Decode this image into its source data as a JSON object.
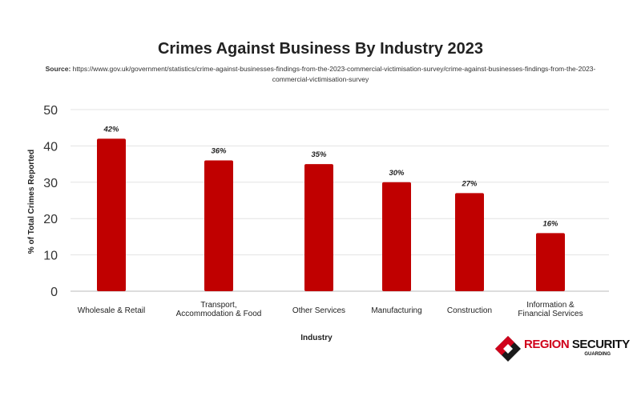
{
  "chart_data": {
    "type": "bar",
    "title": "Crimes Against Business By Industry 2023",
    "source_label": "Source:",
    "source_text": "https://www.gov.uk/government/statistics/crime-against-businesses-findings-from-the-2023-commercial-victimisation-survey/crime-against-businesses-findings-from-the-2023-commercial-victimisation-survey",
    "xlabel": "Industry",
    "ylabel": "% of Total Crimes Reported",
    "ylim": [
      0,
      50
    ],
    "yticks": [
      0,
      10,
      20,
      30,
      40,
      50
    ],
    "grid": true,
    "categories": [
      [
        "Wholesale & Retail"
      ],
      [
        "Transport,",
        "Accommodation & Food"
      ],
      [
        "Other Services"
      ],
      [
        "Manufacturing"
      ],
      [
        "Construction"
      ],
      [
        "Information &",
        "Financial Services"
      ]
    ],
    "values": [
      42,
      36,
      35,
      30,
      27,
      16
    ],
    "data_labels": [
      "42%",
      "36%",
      "35%",
      "30%",
      "27%",
      "16%"
    ],
    "bar_color": "#c00000"
  },
  "logo": {
    "word1": "REGION",
    "word2": "SECURITY",
    "sub": "GUARDING"
  }
}
